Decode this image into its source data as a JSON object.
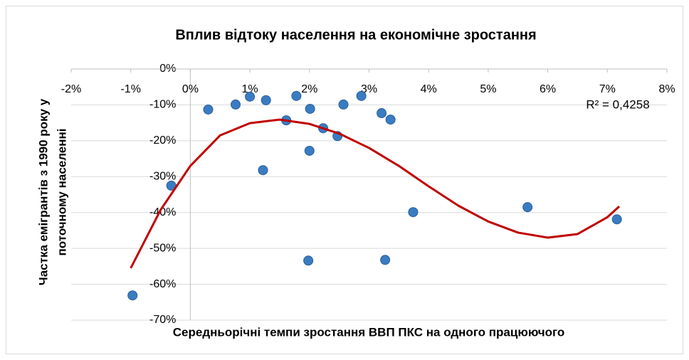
{
  "chart_data": {
    "type": "scatter",
    "title": "Вплив відтоку населення на економічне зростання",
    "x_label": "Середньорічні темпи зростання ВВП ПКС на одного працюючого",
    "y_label": [
      "Частка емігрантів з 1990 року у",
      "поточному населенні"
    ],
    "annotation": "R² = 0,4258",
    "color": "#3a7cc2",
    "x": [
      -0.97,
      -0.32,
      0.3,
      0.76,
      1.0,
      1.27,
      1.22,
      1.61,
      1.78,
      2.01,
      2.0,
      1.98,
      2.23,
      2.47,
      2.57,
      2.87,
      3.21,
      3.36,
      3.27,
      3.74,
      5.66,
      7.16
    ],
    "values": [
      -63.1,
      -32.5,
      -11.3,
      -9.9,
      -7.7,
      -8.7,
      -28.2,
      -14.3,
      -7.5,
      -11.1,
      -22.8,
      -53.4,
      -16.5,
      -18.7,
      -9.9,
      -7.5,
      -12.3,
      -14.1,
      -53.2,
      -39.9,
      -38.5,
      -41.9
    ],
    "trendline": {
      "color": "#c00000",
      "x": [
        -1,
        -0.5,
        0,
        0.5,
        1,
        1.5,
        2,
        2.5,
        3,
        3.5,
        4,
        4.5,
        5,
        5.5,
        6,
        6.5,
        7,
        7.2
      ],
      "values": [
        -55.5,
        -39.3,
        -27,
        -18.5,
        -15.1,
        -14.1,
        -15.3,
        -18,
        -22,
        -27,
        -32.7,
        -38.1,
        -42.5,
        -45.6,
        -47,
        -46,
        -41.3,
        -38.3
      ]
    },
    "xlim": [
      -2,
      8
    ],
    "xticks": [
      {
        "value": -2,
        "label": "-2%"
      },
      {
        "value": -1,
        "label": "-1%"
      },
      {
        "value": 0,
        "label": "0%"
      },
      {
        "value": 1,
        "label": "1%"
      },
      {
        "value": 2,
        "label": "2%"
      },
      {
        "value": 3,
        "label": "3%"
      },
      {
        "value": 4,
        "label": "4%"
      },
      {
        "value": 5,
        "label": "5%"
      },
      {
        "value": 6,
        "label": "6%"
      },
      {
        "value": 7,
        "label": "7%"
      },
      {
        "value": 8,
        "label": "8%"
      }
    ],
    "ylim": [
      -70,
      0
    ],
    "yticks": [
      {
        "value": 0,
        "label": "0%"
      },
      {
        "value": -10,
        "label": "-10%"
      },
      {
        "value": -20,
        "label": "-20%"
      },
      {
        "value": -30,
        "label": "-30%"
      },
      {
        "value": -40,
        "label": "-40%"
      },
      {
        "value": -50,
        "label": "-50%"
      },
      {
        "value": -60,
        "label": "-60%"
      },
      {
        "value": -70,
        "label": "-70%"
      }
    ],
    "grid": true
  }
}
